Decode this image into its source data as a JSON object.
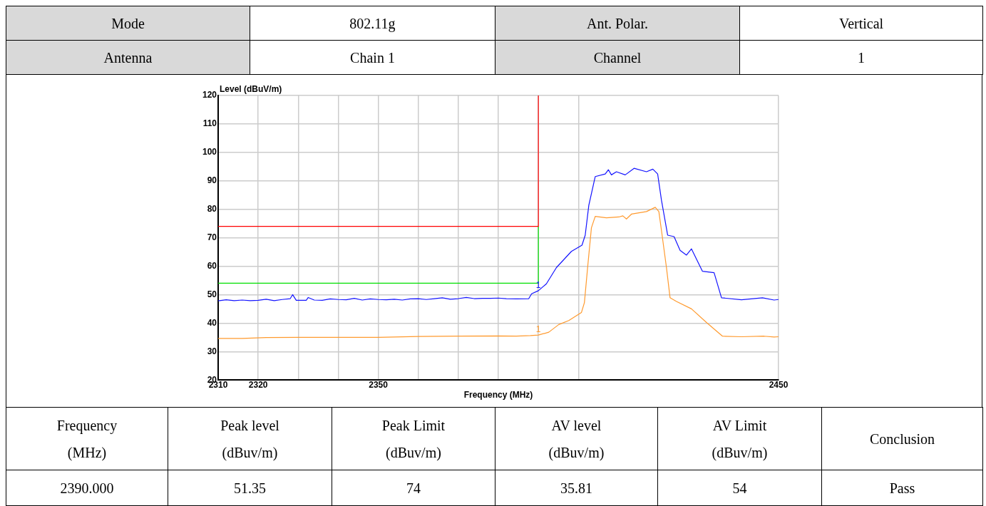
{
  "chart_data": {
    "type": "line",
    "xlabel": "Frequency (MHz)",
    "ylabel": "Level (dBuV/m)",
    "xlim": [
      2310,
      2450
    ],
    "xticks": [
      2310,
      2320,
      {
        "value": 2330,
        "label": null
      },
      {
        "value": 2340,
        "label": null
      },
      2350,
      {
        "value": 2360,
        "label": null
      },
      {
        "value": 2370,
        "label": null
      },
      {
        "value": 2380,
        "label": null
      },
      {
        "value": 2390,
        "label": null
      },
      {
        "value": 2400,
        "label": null
      },
      2450
    ],
    "ylim": [
      20,
      120
    ],
    "yticks": [
      20,
      30,
      40,
      50,
      60,
      70,
      80,
      90,
      100,
      110,
      120
    ],
    "grid": true,
    "legend": false,
    "marker": "none",
    "line_style": "solid",
    "series": [
      {
        "color": "#ff0000",
        "x": [
          2310,
          2390,
          2390
        ],
        "values": [
          74,
          74,
          120
        ]
      },
      {
        "color": "#00e000",
        "x": [
          2310,
          2390,
          2390
        ],
        "values": [
          54,
          54,
          74
        ]
      },
      {
        "color": "#ff9a2e",
        "x": [
          2310,
          2316,
          2322,
          2330,
          2340,
          2350,
          2360,
          2370,
          2380,
          2384.5,
          2388,
          2390,
          2392.6,
          2395.1,
          2397.6,
          2400.75,
          2401.5,
          2402.3,
          2403.25,
          2404.2,
          2407,
          2410.1,
          2411.1,
          2412,
          2413.25,
          2417,
          2419.2,
          2420.1,
          2420.75,
          2422,
          2422.9,
          2424.5,
          2428.25,
          2432,
          2436,
          2440.75,
          2446.4,
          2448.9,
          2450
        ],
        "values": [
          34.6,
          34.6,
          34.9,
          35.0,
          35.0,
          35.0,
          35.3,
          35.4,
          35.5,
          35.4,
          35.6,
          35.8,
          36.8,
          39.5,
          40.9,
          43.7,
          47.2,
          59.5,
          73.5,
          77.5,
          77.0,
          77.3,
          77.7,
          76.6,
          78.3,
          79.2,
          80.7,
          79.2,
          72.6,
          59.5,
          48.9,
          47.6,
          45.0,
          40.2,
          35.4,
          35.2,
          35.4,
          35.1,
          35.2
        ]
      },
      {
        "color": "#1414ff",
        "x": [
          2310,
          2312,
          2314,
          2316,
          2318,
          2320,
          2322,
          2324,
          2326,
          2328,
          2328.6,
          2329.5,
          2332,
          2332.5,
          2334,
          2336,
          2338,
          2340,
          2342,
          2344,
          2346,
          2348,
          2350,
          2352,
          2354,
          2356,
          2358,
          2360,
          2362,
          2364,
          2366,
          2368,
          2370,
          2372,
          2374,
          2376,
          2378,
          2380,
          2382,
          2384.5,
          2387.6,
          2388.3,
          2390,
          2392,
          2394.5,
          2398.25,
          2400.9,
          2401.7,
          2402.6,
          2404.2,
          2406.7,
          2407.5,
          2408.25,
          2409.5,
          2411.7,
          2413.9,
          2417,
          2418.6,
          2419.8,
          2420.75,
          2422.3,
          2423.9,
          2425.4,
          2427,
          2428.25,
          2431,
          2433.9,
          2435.75,
          2440.75,
          2446,
          2448.9,
          2450
        ],
        "values": [
          47.8,
          48.2,
          47.9,
          48.1,
          47.9,
          48.0,
          48.4,
          47.9,
          48.3,
          48.6,
          50.0,
          48.0,
          48.0,
          49.0,
          48.1,
          48.0,
          48.5,
          48.3,
          48.2,
          48.7,
          48.1,
          48.5,
          48.3,
          48.2,
          48.4,
          48.1,
          48.5,
          48.6,
          48.3,
          48.6,
          48.9,
          48.4,
          48.6,
          49.0,
          48.6,
          48.7,
          48.7,
          48.8,
          48.6,
          48.5,
          48.6,
          50.3,
          51.4,
          53.8,
          59.5,
          65.2,
          67.4,
          70.9,
          81.4,
          91.5,
          92.4,
          93.9,
          92.1,
          93.2,
          92.1,
          94.4,
          93.2,
          94.1,
          92.4,
          83.2,
          70.9,
          70.4,
          65.6,
          63.9,
          66.1,
          58.2,
          57.7,
          48.9,
          48.2,
          48.9,
          48.1,
          48.3
        ]
      }
    ],
    "annotations": [
      "Mode",
      "802.11g",
      "Ant. Polar.",
      "Vertical",
      "Antenna",
      "Chain 1",
      "Channel",
      "1",
      "Frequency\n(MHz)",
      "Peak level\n(dBuv/m)",
      "Peak Limit\n(dBuv/m)",
      "AV level\n(dBuv/m)",
      "AV Limit\n(dBuv/m)",
      "Conclusion",
      "2390.000",
      "51.35",
      "74",
      "35.81",
      "54",
      "Pass",
      {
        "text": "1",
        "x": 2390,
        "y": 51.35
      },
      {
        "text": "1",
        "x": 2390,
        "y": 35.81
      }
    ]
  }
}
